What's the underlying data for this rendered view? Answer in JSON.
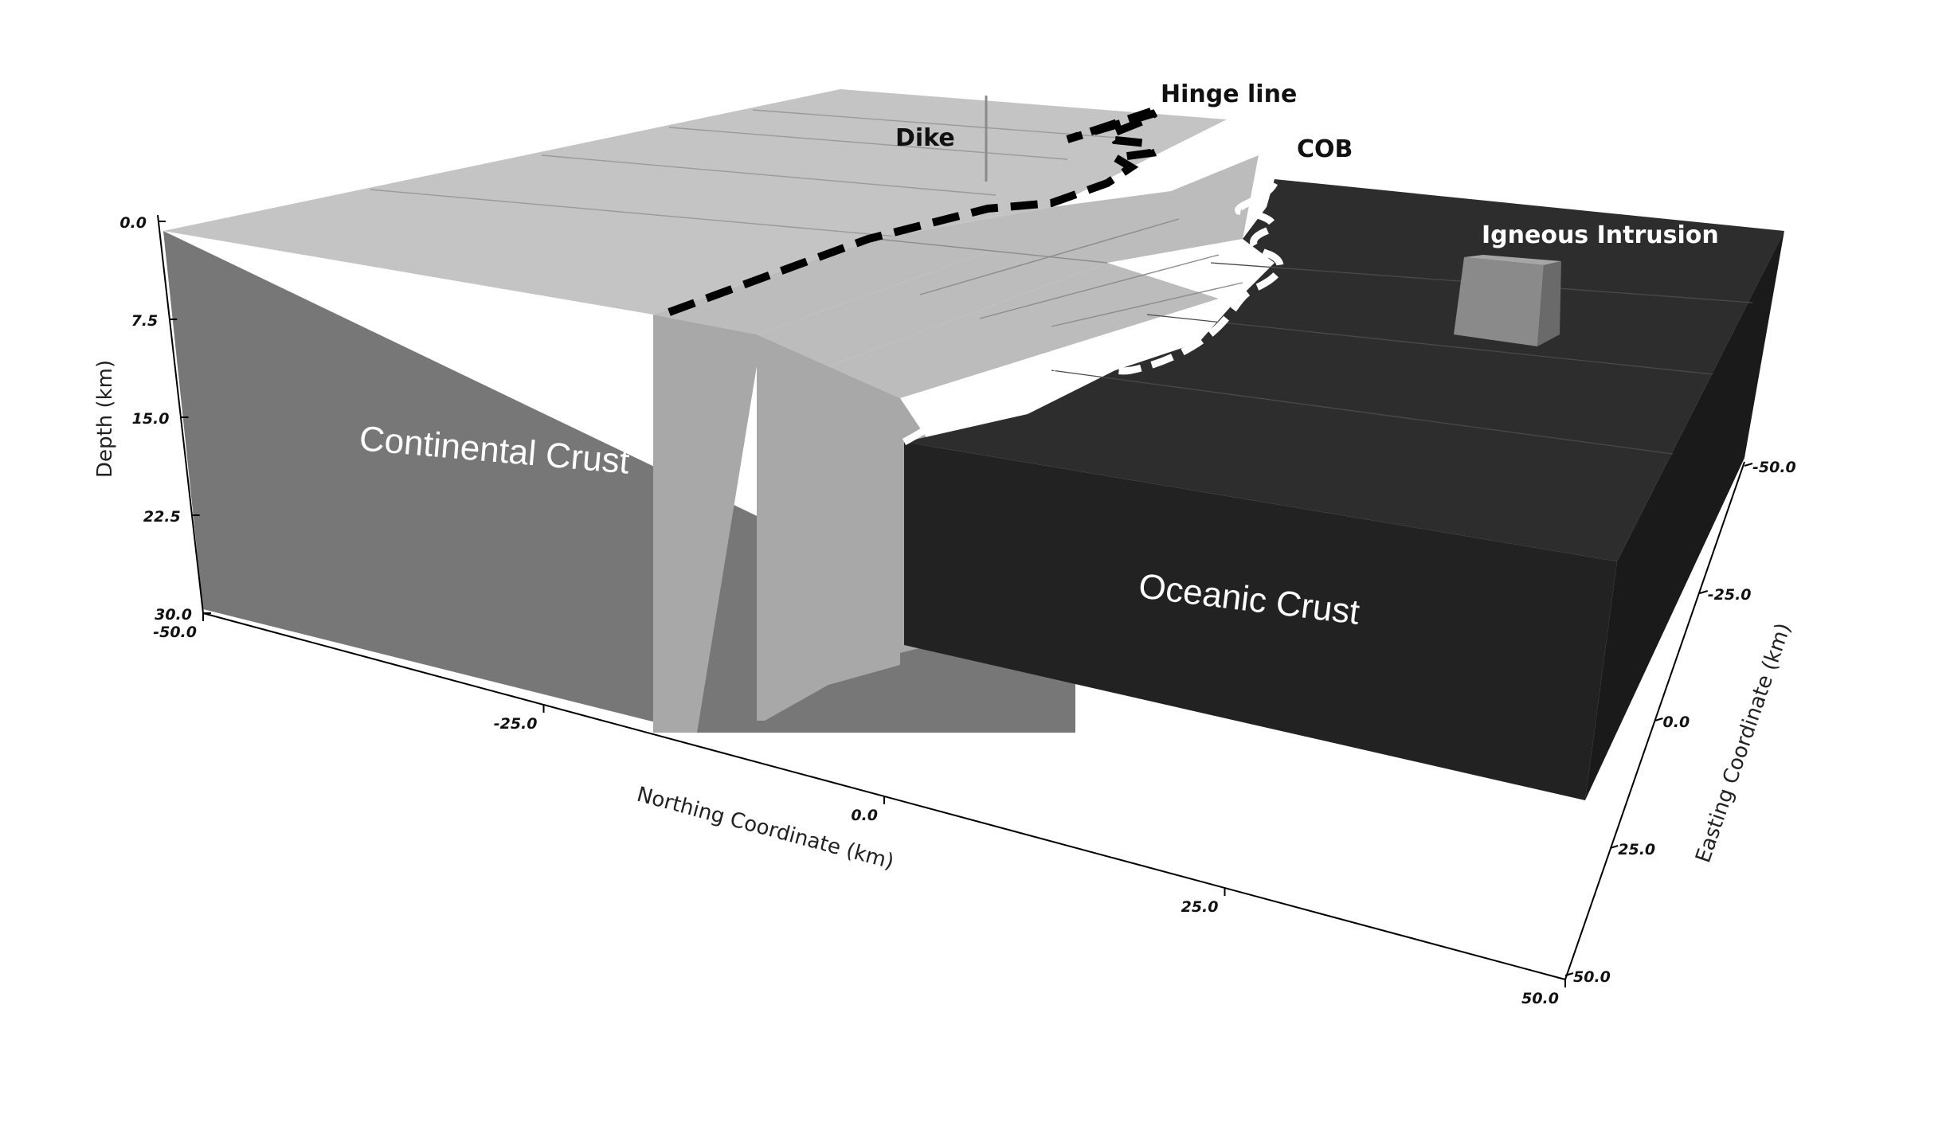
{
  "colors": {
    "continental_top": "#c4c4c4",
    "continental_side": "#777777",
    "step_top": "#bcbcbc",
    "step_front": "#a8a8a8",
    "oceanic_top": "#2d2d2d",
    "oceanic_front": "#222222",
    "oceanic_side": "#1a1a1a",
    "intrusion_front": "#8a8a8a",
    "intrusion_top": "#a6a6a6",
    "intrusion_side": "#6a6a6a",
    "hinge_line": "#000000",
    "cob_line": "#ffffff"
  },
  "units": {
    "continental_label": "Continental Crust",
    "oceanic_label": "Oceanic Crust",
    "intrusion_label": "Igneous Intrusion"
  },
  "annotations": {
    "dike": "Dike",
    "hinge_line": "Hinge line",
    "cob": "COB"
  },
  "axes": {
    "depth": {
      "title": "Depth (km)",
      "ticks": [
        "0.0",
        "7.5",
        "15.0",
        "22.5",
        "30.0"
      ]
    },
    "northing": {
      "title": "Northing Coordinate (km)",
      "ticks": [
        "-50.0",
        "-25.0",
        "0.0",
        "25.0",
        "50.0"
      ]
    },
    "easting": {
      "title": "Easting Coordinate (km)",
      "ticks": [
        "-50.0",
        "-25.0",
        "0.0",
        "25.0",
        "50.0"
      ]
    }
  }
}
